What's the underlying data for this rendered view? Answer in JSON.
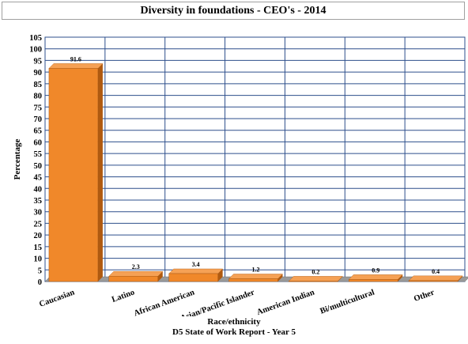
{
  "chart_data": {
    "type": "bar",
    "title": "Diversity in foundations - CEO's - 2014",
    "xlabel": "Race/ethnicity",
    "subtitle": "D5 State of Work Report - Year 5",
    "ylabel": "Percentage",
    "categories": [
      "Caucasian",
      "Latino",
      "African American",
      "Asian/Pacific Islander",
      "American Indian",
      "Bi/multicultural",
      "Other"
    ],
    "values": [
      91.6,
      2.3,
      3.4,
      1.2,
      0.2,
      0.9,
      0.4
    ],
    "value_labels": [
      "91.6",
      "2.3",
      "3.4",
      "1.2",
      "0.2",
      "0.9",
      "0.4"
    ],
    "ylim": [
      0,
      105
    ],
    "yticks": [
      "0",
      "5",
      "10",
      "15",
      "20",
      "25",
      "30",
      "35",
      "40",
      "45",
      "50",
      "55",
      "60",
      "65",
      "70",
      "75",
      "80",
      "85",
      "90",
      "95",
      "100",
      "105"
    ],
    "grid": true,
    "colors": {
      "bar_front": "#F0882A",
      "bar_top": "#F5A155",
      "bar_side": "#B05A10",
      "grid": "#2E4F8C",
      "floor": "#9A9A9A"
    }
  }
}
